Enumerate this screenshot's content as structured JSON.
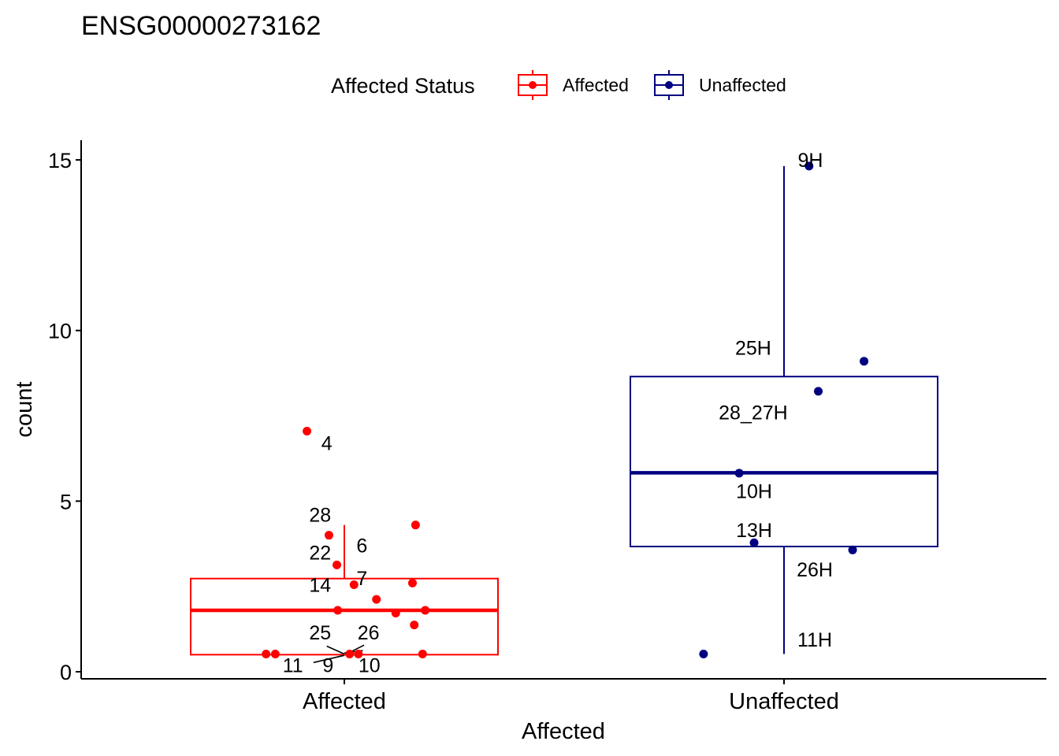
{
  "chart_data": {
    "type": "boxplot",
    "title": "ENSG00000273162",
    "xlabel": "Affected",
    "ylabel": "count",
    "ylim": [
      -0.2,
      15.5
    ],
    "yticks": [
      0,
      5,
      10,
      15
    ],
    "categories": [
      "Affected",
      "Unaffected"
    ],
    "legend": {
      "title": "Affected Status",
      "position": "top",
      "entries": [
        {
          "label": "Affected",
          "color": "#ff0000"
        },
        {
          "label": "Unaffected",
          "color": "#000080"
        }
      ]
    },
    "series": [
      {
        "name": "Affected",
        "color": "#ff0000",
        "box": {
          "q1": 0.5,
          "median": 1.8,
          "q3": 2.73,
          "whisker_low": 0.5,
          "whisker_high": 4.3
        },
        "points": [
          {
            "x": -0.085,
            "y": 7.05
          },
          {
            "x": 0.162,
            "y": 4.3
          },
          {
            "x": -0.035,
            "y": 4.0
          },
          {
            "x": -0.017,
            "y": 3.13
          },
          {
            "x": 0.155,
            "y": 2.6
          },
          {
            "x": 0.022,
            "y": 2.55
          },
          {
            "x": 0.073,
            "y": 2.12
          },
          {
            "x": -0.015,
            "y": 1.8
          },
          {
            "x": 0.117,
            "y": 1.72
          },
          {
            "x": 0.184,
            "y": 1.8
          },
          {
            "x": 0.159,
            "y": 1.37
          },
          {
            "x": -0.178,
            "y": 0.52
          },
          {
            "x": -0.157,
            "y": 0.52
          },
          {
            "x": 0.012,
            "y": 0.52
          },
          {
            "x": 0.032,
            "y": 0.52
          },
          {
            "x": 0.178,
            "y": 0.52
          }
        ],
        "labels": [
          {
            "text": "4",
            "x": -0.04,
            "y": 6.7
          },
          {
            "text": "28",
            "x": -0.055,
            "y": 4.6
          },
          {
            "text": "6",
            "x": 0.04,
            "y": 3.7
          },
          {
            "text": "22",
            "x": -0.055,
            "y": 3.5
          },
          {
            "text": "7",
            "x": 0.04,
            "y": 2.75
          },
          {
            "text": "14",
            "x": -0.055,
            "y": 2.55
          },
          {
            "text": "25",
            "x": -0.055,
            "y": 1.15
          },
          {
            "text": "26",
            "x": 0.055,
            "y": 1.15
          },
          {
            "text": "11",
            "x": -0.117,
            "y": 0.2
          },
          {
            "text": "9",
            "x": -0.037,
            "y": 0.2
          },
          {
            "text": "10",
            "x": 0.057,
            "y": 0.2
          }
        ],
        "connectors": [
          {
            "x1": -0.04,
            "y1": 0.75,
            "x2": 0.0,
            "y2": 0.52
          },
          {
            "x1": 0.045,
            "y1": 0.78,
            "x2": 0.005,
            "y2": 0.52
          },
          {
            "x1": -0.07,
            "y1": 0.27,
            "x2": 0.0,
            "y2": 0.48
          },
          {
            "x1": 0.0,
            "y1": 0.55,
            "x2": 0.042,
            "y2": 0.62
          }
        ]
      },
      {
        "name": "Unaffected",
        "color": "#000080",
        "box": {
          "q1": 3.67,
          "median": 5.83,
          "q3": 8.65,
          "whisker_low": 0.52,
          "whisker_high": 14.82
        },
        "points": [
          {
            "x": 0.057,
            "y": 14.82
          },
          {
            "x": 0.182,
            "y": 9.1
          },
          {
            "x": 0.078,
            "y": 8.22
          },
          {
            "x": -0.102,
            "y": 5.82
          },
          {
            "x": -0.068,
            "y": 3.78
          },
          {
            "x": 0.156,
            "y": 3.57
          },
          {
            "x": -0.183,
            "y": 0.52
          }
        ],
        "labels": [
          {
            "text": "9H",
            "x": 0.06,
            "y": 15.0
          },
          {
            "text": "25H",
            "x": -0.07,
            "y": 9.5
          },
          {
            "text": "28_27H",
            "x": -0.07,
            "y": 7.6
          },
          {
            "text": "10H",
            "x": -0.068,
            "y": 5.3
          },
          {
            "text": "13H",
            "x": -0.068,
            "y": 4.15
          },
          {
            "text": "26H",
            "x": 0.07,
            "y": 3.0
          },
          {
            "text": "11H",
            "x": 0.07,
            "y": 0.95
          }
        ],
        "connectors": []
      }
    ]
  }
}
